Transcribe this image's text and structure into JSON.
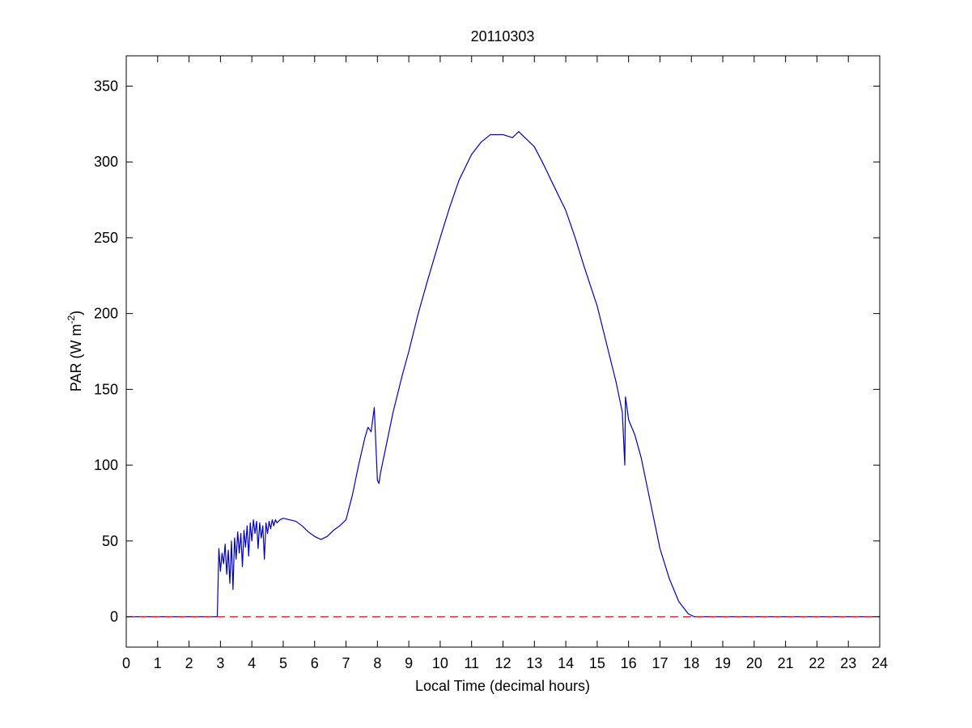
{
  "chart_data": {
    "type": "line",
    "title": "20110303",
    "xlabel": "Local Time (decimal hours)",
    "ylabel": {
      "main": "PAR (W m",
      "superscript": "-2",
      "close": ")"
    },
    "xlim": [
      0,
      24
    ],
    "ylim": [
      -20,
      370
    ],
    "x_ticks": [
      "0",
      "1",
      "2",
      "3",
      "4",
      "5",
      "6",
      "7",
      "8",
      "9",
      "10",
      "11",
      "12",
      "13",
      "14",
      "15",
      "16",
      "17",
      "18",
      "19",
      "20",
      "21",
      "22",
      "23",
      "24"
    ],
    "y_ticks": [
      "0",
      "50",
      "100",
      "150",
      "200",
      "250",
      "300",
      "350"
    ],
    "grid": false,
    "series": [
      {
        "color": "#0000c0",
        "style": "solid",
        "x": [
          0,
          2.9,
          2.95,
          3.0,
          3.05,
          3.1,
          3.15,
          3.2,
          3.25,
          3.3,
          3.35,
          3.4,
          3.45,
          3.5,
          3.55,
          3.6,
          3.65,
          3.7,
          3.75,
          3.8,
          3.85,
          3.9,
          3.95,
          4.0,
          4.05,
          4.1,
          4.15,
          4.2,
          4.25,
          4.3,
          4.35,
          4.4,
          4.45,
          4.5,
          4.55,
          4.6,
          4.65,
          4.7,
          4.75,
          4.8,
          4.85,
          4.9,
          5.0,
          5.2,
          5.4,
          5.6,
          5.8,
          6.0,
          6.2,
          6.4,
          6.6,
          6.8,
          7.0,
          7.2,
          7.4,
          7.6,
          7.7,
          7.8,
          7.9,
          8.0,
          8.05,
          8.1,
          8.3,
          8.5,
          8.8,
          9.0,
          9.3,
          9.6,
          10.0,
          10.3,
          10.6,
          11.0,
          11.3,
          11.6,
          12.0,
          12.3,
          12.5,
          12.7,
          13.0,
          13.3,
          13.6,
          14.0,
          14.3,
          14.6,
          15.0,
          15.3,
          15.6,
          15.8,
          15.88,
          15.9,
          15.95,
          16.0,
          16.2,
          16.4,
          16.6,
          16.8,
          17.0,
          17.3,
          17.6,
          17.9,
          18.1,
          18.3,
          18.5,
          24
        ],
        "y": [
          0,
          0,
          45,
          30,
          42,
          35,
          48,
          28,
          44,
          22,
          50,
          18,
          52,
          38,
          56,
          42,
          55,
          33,
          57,
          46,
          60,
          40,
          62,
          50,
          64,
          55,
          63,
          45,
          62,
          52,
          60,
          38,
          62,
          55,
          63,
          58,
          64,
          60,
          64,
          62,
          63,
          64,
          65,
          64,
          63,
          60,
          56,
          53,
          51,
          53,
          57,
          60,
          64,
          80,
          100,
          118,
          125,
          122,
          138,
          90,
          88,
          95,
          115,
          135,
          160,
          175,
          200,
          222,
          250,
          270,
          288,
          305,
          313,
          318,
          318,
          316,
          320,
          316,
          310,
          298,
          285,
          268,
          250,
          230,
          205,
          180,
          155,
          135,
          100,
          145,
          138,
          130,
          120,
          105,
          85,
          65,
          45,
          25,
          10,
          2,
          0,
          0,
          0,
          0
        ]
      },
      {
        "color": "#ff0000",
        "style": "dashed",
        "x": [
          0,
          24
        ],
        "y": [
          0,
          0
        ]
      }
    ]
  }
}
